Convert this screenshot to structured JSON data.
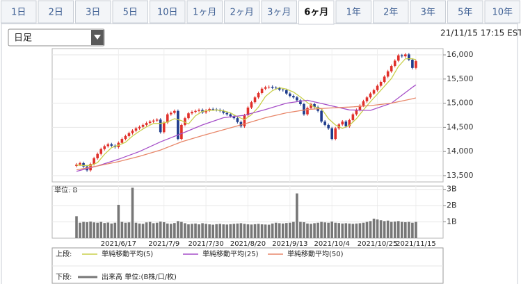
{
  "tabs": [
    "1日",
    "2日",
    "3日",
    "5日",
    "10日",
    "1ヶ月",
    "2ヶ月",
    "3ヶ月",
    "6ヶ月",
    "1年",
    "2年",
    "3年",
    "5年",
    "10年"
  ],
  "selected_tab": 8,
  "dropdown": "日足",
  "timestamp": "21/11/15 17:15 EST",
  "legend": {
    "upper_label": "上段:",
    "lower_label": "下段:"
  },
  "chart_data": [
    {
      "type": "candlestick",
      "categories": [
        null,
        null,
        null,
        null,
        null,
        null,
        null,
        null,
        null,
        null,
        null,
        null,
        "2021/6/17",
        null,
        null,
        null,
        null,
        null,
        null,
        null,
        null,
        null,
        null,
        null,
        null,
        "2021/7/9",
        null,
        null,
        null,
        null,
        null,
        null,
        null,
        null,
        null,
        null,
        null,
        "2021/7/30",
        null,
        null,
        null,
        null,
        null,
        null,
        null,
        null,
        null,
        null,
        null,
        "2021/8/20",
        null,
        null,
        null,
        null,
        null,
        null,
        null,
        null,
        null,
        null,
        null,
        "2021/9/13",
        null,
        null,
        null,
        null,
        null,
        null,
        null,
        null,
        null,
        null,
        null,
        "2021/10/4",
        null,
        null,
        null,
        null,
        null,
        null,
        null,
        null,
        null,
        null,
        null,
        null,
        "2021/10/25",
        null,
        null,
        null,
        null,
        null,
        null,
        null,
        null,
        null,
        null,
        "2021/11/15"
      ],
      "open": [
        13700,
        13730,
        13760,
        13690,
        13610,
        13740,
        13860,
        13950,
        14050,
        14110,
        14150,
        14120,
        14090,
        14180,
        14260,
        14320,
        14380,
        14430,
        14480,
        14510,
        14550,
        14590,
        14620,
        14640,
        14660,
        14400,
        14600,
        14770,
        14800,
        14840,
        14260,
        14550,
        14690,
        14790,
        14820,
        14840,
        14860,
        14810,
        14850,
        14880,
        14870,
        14860,
        14840,
        14800,
        14770,
        14730,
        14690,
        14610,
        14520,
        14750,
        14910,
        15020,
        15120,
        15210,
        15300,
        15330,
        15340,
        15320,
        15310,
        15280,
        15270,
        15200,
        15150,
        15120,
        15060,
        14980,
        14770,
        14900,
        14980,
        14920,
        14840,
        14620,
        14550,
        14480,
        14260,
        14480,
        14560,
        14620,
        14520,
        14650,
        14770,
        14860,
        14950,
        15040,
        15120,
        15200,
        15270,
        15360,
        15440,
        15550,
        15660,
        15770,
        15880,
        15990,
        15970,
        16010,
        15900,
        15730
      ],
      "high": [
        13760,
        13790,
        13790,
        13720,
        13770,
        13890,
        13980,
        14080,
        14140,
        14180,
        14180,
        14150,
        14210,
        14290,
        14350,
        14410,
        14460,
        14510,
        14540,
        14580,
        14620,
        14650,
        14670,
        14690,
        14690,
        14630,
        14800,
        14830,
        14870,
        14870,
        14580,
        14720,
        14820,
        14850,
        14870,
        14890,
        14890,
        14880,
        14910,
        14910,
        14900,
        14890,
        14870,
        14830,
        14800,
        14760,
        14720,
        14640,
        14780,
        14940,
        15050,
        15150,
        15240,
        15330,
        15360,
        15370,
        15370,
        15350,
        15340,
        15310,
        15300,
        15230,
        15180,
        15150,
        15090,
        15010,
        14930,
        15010,
        15010,
        14950,
        14870,
        14650,
        14580,
        14510,
        14510,
        14590,
        14650,
        14650,
        14680,
        14800,
        14890,
        14980,
        15070,
        15150,
        15230,
        15300,
        15390,
        15470,
        15580,
        15690,
        15800,
        15910,
        16020,
        16020,
        16040,
        16040,
        15930,
        15900
      ],
      "low": [
        13670,
        13700,
        13660,
        13580,
        13580,
        13710,
        13830,
        13920,
        14020,
        14080,
        14090,
        14060,
        14060,
        14150,
        14230,
        14290,
        14350,
        14400,
        14450,
        14480,
        14520,
        14560,
        14590,
        14610,
        14370,
        14370,
        14570,
        14740,
        14770,
        14230,
        14230,
        14520,
        14660,
        14760,
        14790,
        14810,
        14780,
        14780,
        14820,
        14840,
        14830,
        14810,
        14770,
        14740,
        14700,
        14660,
        14580,
        14490,
        14490,
        14720,
        14880,
        14990,
        15090,
        15180,
        15270,
        15300,
        15290,
        15280,
        15250,
        15240,
        15170,
        15120,
        15090,
        15030,
        14950,
        14740,
        14740,
        14870,
        14890,
        14810,
        14590,
        14520,
        14450,
        14230,
        14230,
        14450,
        14530,
        14490,
        14490,
        14620,
        14740,
        14830,
        14920,
        15010,
        15090,
        15170,
        15240,
        15330,
        15410,
        15520,
        15630,
        15740,
        15850,
        15940,
        15940,
        15870,
        15700,
        15700
      ],
      "close": [
        13730,
        13760,
        13690,
        13610,
        13740,
        13860,
        13950,
        14050,
        14110,
        14150,
        14120,
        14090,
        14180,
        14260,
        14320,
        14380,
        14430,
        14480,
        14510,
        14550,
        14590,
        14620,
        14640,
        14660,
        14400,
        14600,
        14770,
        14800,
        14840,
        14260,
        14550,
        14690,
        14790,
        14820,
        14840,
        14860,
        14810,
        14850,
        14880,
        14870,
        14860,
        14840,
        14800,
        14770,
        14730,
        14690,
        14610,
        14520,
        14750,
        14910,
        15020,
        15120,
        15210,
        15300,
        15330,
        15340,
        15320,
        15310,
        15280,
        15270,
        15200,
        15150,
        15120,
        15060,
        14980,
        14770,
        14900,
        14980,
        14920,
        14840,
        14620,
        14550,
        14480,
        14260,
        14480,
        14560,
        14620,
        14520,
        14650,
        14770,
        14860,
        14950,
        15040,
        15120,
        15200,
        15270,
        15360,
        15440,
        15550,
        15660,
        15770,
        15880,
        15990,
        15970,
        16010,
        15900,
        15730,
        15870
      ],
      "up_color": "#e0302a",
      "down_color": "#1f3c8c",
      "series": [
        {
          "name": "単純移動平均(5)",
          "color": "#c8cf4a",
          "x": [
            0,
            2,
            4,
            6,
            8,
            10,
            12,
            14,
            16,
            18,
            20,
            22,
            24,
            26,
            28,
            30,
            32,
            34,
            36,
            38,
            40,
            42,
            44,
            46,
            48,
            50,
            52,
            54,
            56,
            58,
            60,
            62,
            64,
            66,
            68,
            70,
            72,
            74,
            76,
            78,
            80,
            82,
            84,
            86,
            88,
            90,
            92,
            94,
            96,
            97
          ],
          "values": [
            13720,
            13710,
            13710,
            13770,
            13940,
            14080,
            14130,
            14190,
            14320,
            14420,
            14510,
            14580,
            14580,
            14610,
            14680,
            14640,
            14570,
            14740,
            14830,
            14850,
            14860,
            14840,
            14800,
            14720,
            14660,
            14760,
            14920,
            15140,
            15260,
            15320,
            15290,
            15230,
            15130,
            15010,
            14920,
            14890,
            14680,
            14550,
            14480,
            14540,
            14680,
            14860,
            15030,
            15190,
            15350,
            15510,
            15760,
            15920,
            15920,
            15900
          ]
        },
        {
          "name": "単純移動平均(25)",
          "color": "#a64fc8",
          "x": [
            0,
            6,
            12,
            18,
            24,
            30,
            36,
            42,
            48,
            54,
            60,
            66,
            72,
            78,
            84,
            90,
            96,
            97
          ],
          "values": [
            13590,
            13700,
            13840,
            14000,
            14200,
            14370,
            14550,
            14700,
            14750,
            14870,
            15000,
            15060,
            14960,
            14860,
            14850,
            15000,
            15330,
            15380
          ]
        },
        {
          "name": "単純移動平均(50)",
          "color": "#e8876a",
          "x": [
            0,
            6,
            12,
            18,
            24,
            30,
            36,
            42,
            48,
            54,
            60,
            66,
            72,
            78,
            84,
            90,
            96,
            97
          ],
          "values": [
            13620,
            13700,
            13790,
            13900,
            14030,
            14200,
            14330,
            14450,
            14570,
            14700,
            14800,
            14870,
            14900,
            14920,
            14950,
            15000,
            15090,
            15110
          ]
        }
      ],
      "ylim": [
        13370,
        16130
      ],
      "yticks": [
        {
          "value": 13500,
          "label": "13,500"
        },
        {
          "value": 14000,
          "label": "14,000"
        },
        {
          "value": 14500,
          "label": "14,500"
        },
        {
          "value": 15000,
          "label": "15,000"
        },
        {
          "value": 15500,
          "label": "15,500"
        },
        {
          "value": 16000,
          "label": "16,000"
        }
      ],
      "grid": true
    },
    {
      "type": "bar",
      "title": "単位: B",
      "series": [
        {
          "name": "出来高 単位:(B株/口/枚)",
          "color": "#777777",
          "values": [
            1.35,
            0.95,
            1.0,
            0.98,
            1.02,
            0.97,
            0.95,
            1.0,
            0.93,
            0.96,
            0.9,
            0.95,
            2.05,
            1.0,
            0.95,
            0.97,
            3.1,
            0.95,
            0.9,
            0.88,
            0.97,
            1.0,
            0.92,
            0.95,
            1.02,
            0.98,
            0.9,
            0.88,
            0.93,
            1.05,
            1.0,
            0.92,
            0.85,
            0.88,
            0.9,
            0.85,
            0.92,
            0.88,
            0.85,
            0.83,
            0.86,
            0.88,
            0.85,
            0.84,
            0.86,
            0.88,
            0.9,
            0.92,
            0.88,
            0.85,
            0.84,
            0.86,
            0.88,
            0.85,
            0.84,
            0.83,
            0.9,
            0.95,
            0.92,
            0.9,
            0.93,
            0.95,
            1.0,
            2.75,
            1.0,
            0.98,
            0.9,
            0.88,
            0.92,
            0.95,
            1.0,
            0.97,
            0.95,
            1.02,
            0.95,
            0.93,
            0.9,
            0.92,
            0.9,
            0.88,
            0.9,
            0.92,
            0.95,
            1.0,
            1.05,
            1.2,
            1.15,
            1.1,
            1.05,
            1.08,
            1.0,
            1.02,
            1.05,
            1.0,
            0.98,
            1.0,
            0.95,
            1.0
          ]
        }
      ],
      "ylim": [
        0,
        3.2
      ],
      "yticks": [
        {
          "value": 1,
          "label": "1B"
        },
        {
          "value": 2,
          "label": "2B"
        },
        {
          "value": 3,
          "label": "3B"
        }
      ],
      "grid": true
    }
  ]
}
